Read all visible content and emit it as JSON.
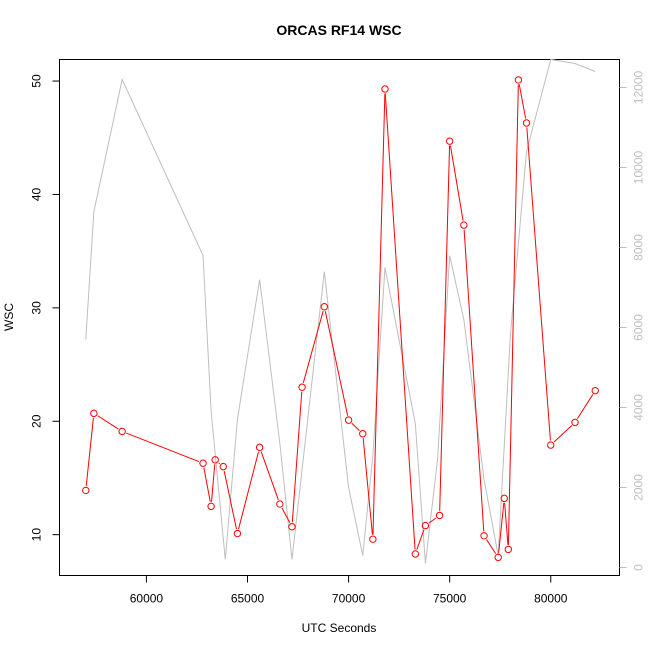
{
  "chart_data": {
    "type": "line",
    "title": "ORCAS RF14 WSC",
    "xlabel": "UTC Seconds",
    "ylabel": "WSC",
    "y2label": "",
    "xlim": [
      55700,
      83400
    ],
    "ylim": [
      6.4,
      51.9
    ],
    "y2lim": [
      -200,
      12700
    ],
    "x_ticks": [
      60000,
      65000,
      70000,
      75000,
      80000
    ],
    "y_ticks": [
      10,
      20,
      30,
      40,
      50
    ],
    "y2_ticks": [
      0,
      2000,
      4000,
      6000,
      8000,
      10000,
      12000
    ],
    "grid": false,
    "legend": "none",
    "series": [
      {
        "axis": "left",
        "color": "#ff0000",
        "marker": "open-circle",
        "x": [
          57000,
          57400,
          58800,
          62800,
          63200,
          63400,
          63800,
          64500,
          65600,
          66600,
          67200,
          67700,
          68800,
          70000,
          70700,
          71200,
          71800,
          73300,
          73800,
          74500,
          75000,
          75700,
          76700,
          77400,
          77700,
          77900,
          78400,
          78800,
          80000,
          81200,
          82200
        ],
        "y": [
          13.9,
          20.7,
          19.1,
          16.3,
          12.5,
          16.6,
          16.0,
          10.1,
          17.7,
          12.7,
          10.7,
          23.0,
          30.1,
          20.1,
          18.9,
          9.6,
          49.3,
          8.3,
          10.8,
          11.7,
          44.7,
          37.3,
          9.9,
          8.0,
          13.2,
          8.7,
          50.1,
          46.3,
          17.9,
          19.9,
          22.7
        ]
      },
      {
        "axis": "right",
        "color": "#bebebe",
        "marker": "none",
        "x": [
          57000,
          57400,
          58800,
          62800,
          63200,
          63900,
          64500,
          65600,
          66600,
          67200,
          68800,
          70000,
          70700,
          71200,
          71800,
          73300,
          73800,
          74400,
          75000,
          75700,
          76700,
          77400,
          78000,
          78800,
          80000,
          81200,
          82200
        ],
        "y": [
          5700,
          8900,
          12200,
          7800,
          3900,
          200,
          3700,
          7200,
          3100,
          200,
          7400,
          2000,
          300,
          2800,
          7500,
          3600,
          100,
          2700,
          7800,
          6200,
          2200,
          300,
          5800,
          10400,
          12700,
          12600,
          12400
        ]
      }
    ]
  }
}
